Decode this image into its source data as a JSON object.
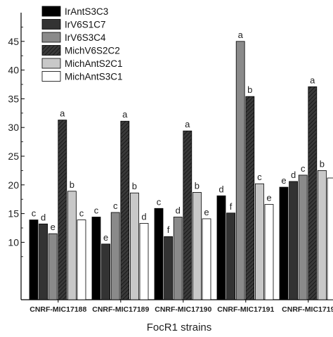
{
  "chart_data": {
    "type": "bar",
    "xlabel": "FocR1 strains",
    "ylabel": "",
    "ylim": [
      0,
      50
    ],
    "yticks": [
      10,
      15,
      20,
      25,
      30,
      35,
      40,
      45
    ],
    "grid": false,
    "legend_position": "top-left",
    "categories": [
      "CNRF-MIC17188",
      "CNRF-MIC17189",
      "CNRF-MIC17190",
      "CNRF-MIC17191",
      "CNRF-MIC1719"
    ],
    "series": [
      {
        "name": "IrAntS3C3",
        "fill": "#000000",
        "pattern": "solid",
        "values": [
          13.9,
          14.4,
          15.9,
          18.1,
          19.6
        ],
        "labels": [
          "c",
          "c",
          "c",
          "d",
          "e"
        ]
      },
      {
        "name": "IrV6S1C7",
        "fill": "#333333",
        "pattern": "solid",
        "values": [
          13.2,
          9.7,
          11.0,
          15.1,
          20.6
        ],
        "labels": [
          "d",
          "e",
          "f",
          "f",
          "d"
        ]
      },
      {
        "name": "IrV6S3C4",
        "fill": "#8a8a8a",
        "pattern": "solid",
        "values": [
          11.5,
          15.2,
          14.4,
          45.0,
          21.7
        ],
        "labels": [
          "e",
          "c",
          "d",
          "a",
          "c"
        ]
      },
      {
        "name": "MichV6S2C2",
        "fill": "#3a3a3a",
        "pattern": "hatch",
        "values": [
          31.3,
          31.1,
          29.4,
          35.4,
          37.1
        ],
        "labels": [
          "a",
          "a",
          "a",
          "b",
          "a"
        ]
      },
      {
        "name": "MichAntS2C1",
        "fill": "#c8c8c8",
        "pattern": "solid",
        "values": [
          18.9,
          18.6,
          18.7,
          20.2,
          22.5
        ],
        "labels": [
          "b",
          "b",
          "b",
          "c",
          "b"
        ]
      },
      {
        "name": "MichAntS3C1",
        "fill": "#ffffff",
        "pattern": "solid",
        "values": [
          13.9,
          13.3,
          14.1,
          16.6,
          21.2
        ],
        "labels": [
          "c",
          "d",
          "e",
          "e",
          ""
        ]
      }
    ]
  }
}
